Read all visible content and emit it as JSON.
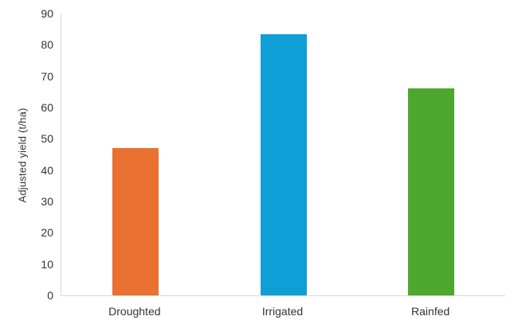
{
  "chart_data": {
    "type": "bar",
    "categories": [
      "Droughted",
      "Irrigated",
      "Rainfed"
    ],
    "values": [
      47,
      83.3,
      66
    ],
    "bar_colors": [
      "#E97132",
      "#0F9ED5",
      "#4EA72E"
    ],
    "ylabel": "Adjusted yield (t/ha)",
    "ylim": [
      0,
      90
    ],
    "ytick_step": 10,
    "ytick_labels": [
      "0",
      "10",
      "20",
      "30",
      "40",
      "50",
      "60",
      "70",
      "80",
      "90"
    ],
    "grid": false,
    "legend": false,
    "axis_color": "#D9D9D9",
    "text_color": "#333333",
    "background_color": "#FFFFFF"
  }
}
